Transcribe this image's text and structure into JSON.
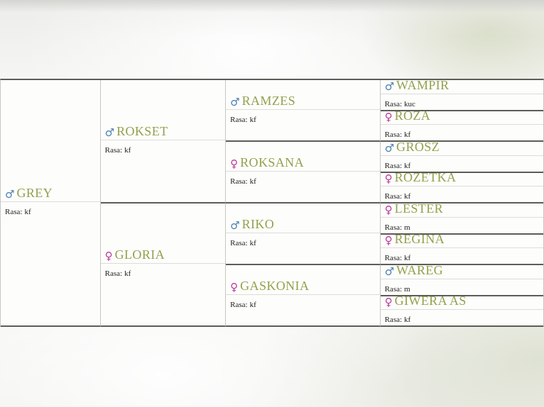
{
  "labels": {
    "rasa": "Rasa:"
  },
  "colors": {
    "name_text": "#93a14c",
    "male_symbol": "#4d7fae",
    "female_symbol": "#b93a9b",
    "dark_border": "#5d5c58",
    "light_border": "#c7c6c1"
  },
  "pedigree": {
    "cells": [
      {
        "name": "GREY",
        "symbol": "♂",
        "sex": "male",
        "rasa": "kf"
      },
      {
        "name": "ROKSET",
        "symbol": "♂",
        "sex": "male",
        "rasa": "kf"
      },
      {
        "name": "GLORIA",
        "symbol": "♀",
        "sex": "female",
        "rasa": "kf"
      },
      {
        "name": "RAMZES",
        "symbol": "♂",
        "sex": "male",
        "rasa": "kf"
      },
      {
        "name": "ROKSANA",
        "symbol": "♀",
        "sex": "female",
        "rasa": "kf"
      },
      {
        "name": "RIKO",
        "symbol": "♂",
        "sex": "male",
        "rasa": "kf"
      },
      {
        "name": "GASKONIA",
        "symbol": "♀",
        "sex": "female",
        "rasa": "kf"
      },
      {
        "name": "WAMPIR",
        "symbol": "♂",
        "sex": "male",
        "rasa": "kuc"
      },
      {
        "name": "RÓŻA",
        "symbol": "♀",
        "sex": "female",
        "rasa": "kf"
      },
      {
        "name": "GROSZ",
        "symbol": "♂",
        "sex": "male",
        "rasa": "kf"
      },
      {
        "name": "ROZETKA",
        "symbol": "♀",
        "sex": "female",
        "rasa": "kf"
      },
      {
        "name": "LESTER",
        "symbol": "♀",
        "sex": "female",
        "rasa": "m"
      },
      {
        "name": "REGINA",
        "symbol": "♀",
        "sex": "female",
        "rasa": "kf"
      },
      {
        "name": "WAREG",
        "symbol": "♂",
        "sex": "male",
        "rasa": "m"
      },
      {
        "name": "GIWERA AS",
        "symbol": "♀",
        "sex": "female",
        "rasa": "kf"
      }
    ]
  }
}
